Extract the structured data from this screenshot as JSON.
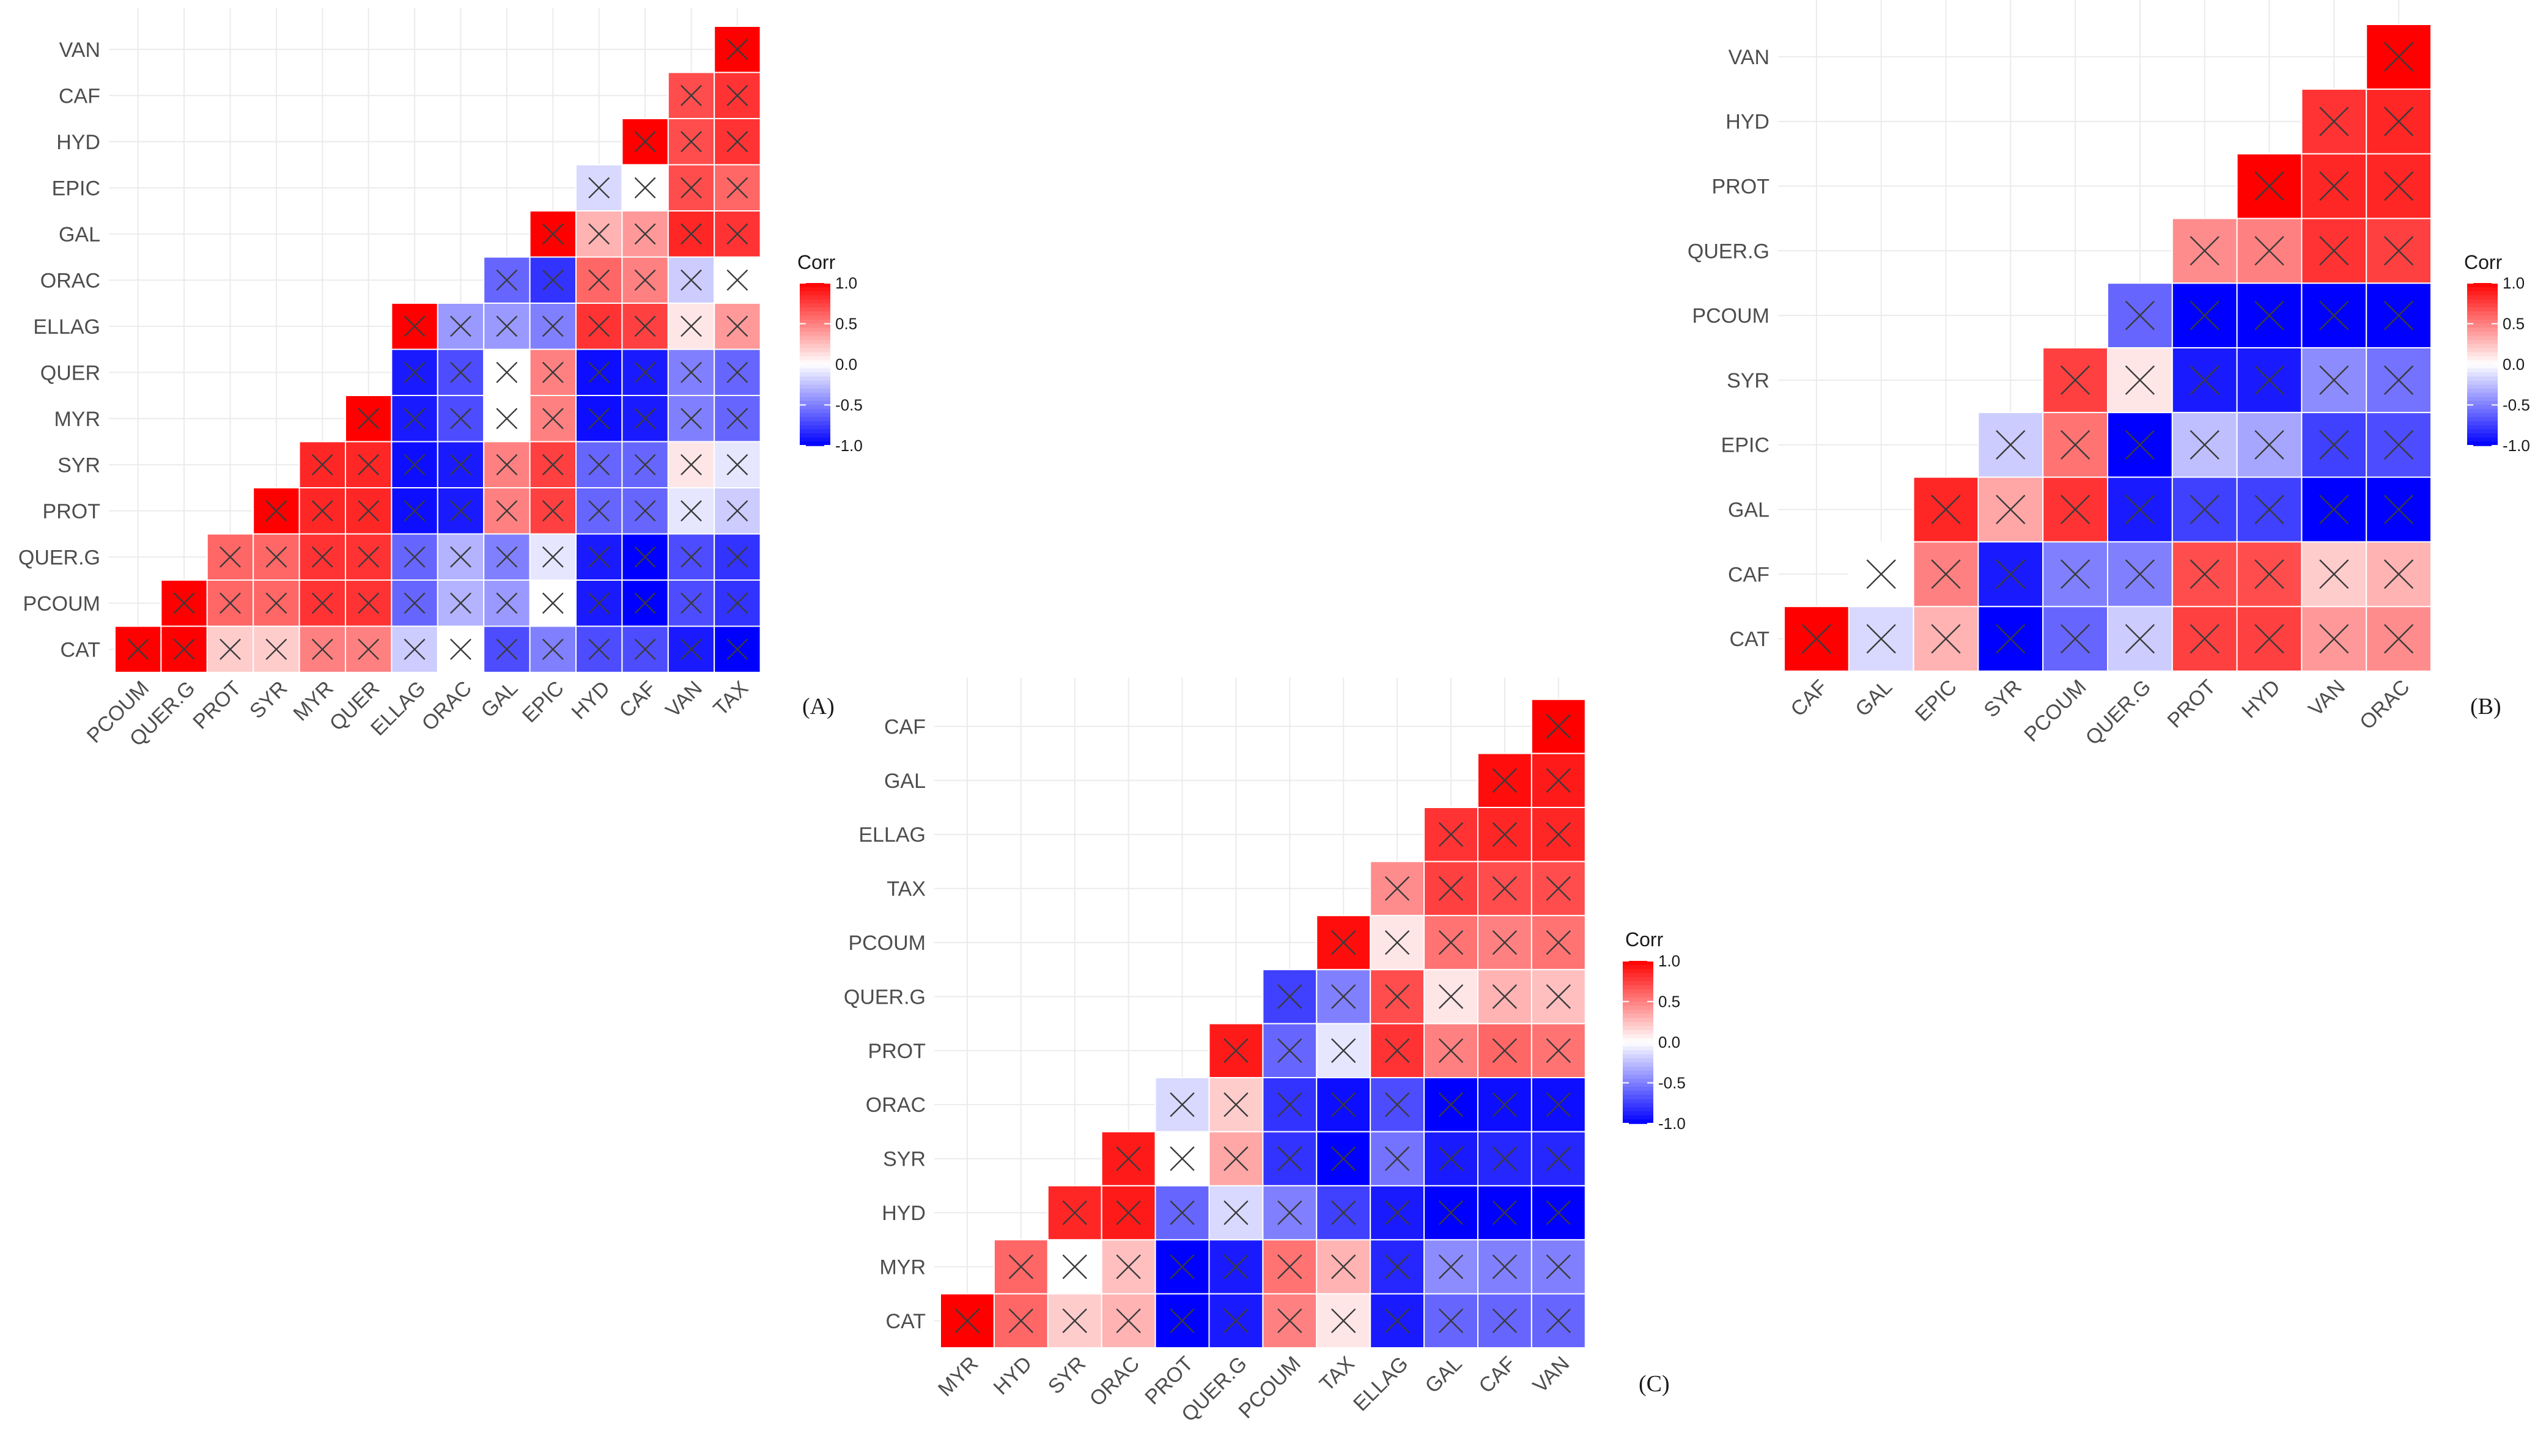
{
  "chart_data": [
    {
      "type": "heatmap",
      "panel_label": "(A)",
      "legend": {
        "title": "Corr",
        "ticks": [
          "1.0",
          "0.5",
          "0.0",
          "-0.5",
          "-1.0"
        ],
        "range": [
          -1,
          1
        ]
      },
      "x_labels": [
        "PCOUM",
        "QUER.G",
        "PROT",
        "SYR",
        "MYR",
        "QUER",
        "ELLAG",
        "ORAC",
        "GAL",
        "EPIC",
        "HYD",
        "CAF",
        "VAN",
        "TAX"
      ],
      "y_labels": [
        "CAT",
        "PCOUM",
        "QUER.G",
        "PROT",
        "SYR",
        "MYR",
        "QUER",
        "ELLAG",
        "ORAC",
        "GAL",
        "EPIC",
        "HYD",
        "CAF",
        "VAN"
      ],
      "values": [
        [
          1.0,
          1.0,
          0.2,
          0.2,
          0.5,
          0.5,
          -0.2,
          0.0,
          -0.7,
          -0.5,
          -0.7,
          -0.7,
          -0.9,
          -1.0
        ],
        [
          null,
          1.0,
          0.6,
          0.6,
          0.8,
          0.8,
          -0.6,
          -0.3,
          -0.4,
          0.0,
          -0.9,
          -1.0,
          -0.7,
          -0.8
        ],
        [
          null,
          null,
          0.6,
          0.6,
          0.8,
          0.8,
          -0.6,
          -0.3,
          -0.5,
          -0.1,
          -0.9,
          -1.0,
          -0.7,
          -0.8
        ],
        [
          null,
          null,
          null,
          1.0,
          0.85,
          0.85,
          -0.95,
          -0.9,
          0.5,
          0.75,
          -0.6,
          -0.6,
          -0.1,
          -0.2
        ],
        [
          null,
          null,
          null,
          null,
          0.85,
          0.85,
          -0.95,
          -0.9,
          0.5,
          0.75,
          -0.6,
          -0.6,
          0.1,
          -0.1
        ],
        [
          null,
          null,
          null,
          null,
          null,
          1.0,
          -0.9,
          -0.7,
          0.0,
          0.5,
          -0.95,
          -0.9,
          -0.5,
          -0.6
        ],
        [
          null,
          null,
          null,
          null,
          null,
          null,
          -0.9,
          -0.7,
          0.0,
          0.5,
          -0.95,
          -0.9,
          -0.5,
          -0.6
        ],
        [
          null,
          null,
          null,
          null,
          null,
          null,
          1.0,
          -0.4,
          -0.4,
          -0.5,
          0.8,
          0.75,
          0.1,
          0.4
        ],
        [
          null,
          null,
          null,
          null,
          null,
          null,
          null,
          null,
          -0.6,
          -0.8,
          0.6,
          0.5,
          -0.2,
          0.0
        ],
        [
          null,
          null,
          null,
          null,
          null,
          null,
          null,
          null,
          null,
          1.0,
          0.3,
          0.4,
          0.85,
          0.8
        ],
        [
          null,
          null,
          null,
          null,
          null,
          null,
          null,
          null,
          null,
          null,
          -0.15,
          0.0,
          0.7,
          0.6
        ],
        [
          null,
          null,
          null,
          null,
          null,
          null,
          null,
          null,
          null,
          null,
          null,
          1.0,
          0.7,
          0.8
        ],
        [
          null,
          null,
          null,
          null,
          null,
          null,
          null,
          null,
          null,
          null,
          null,
          null,
          0.7,
          0.8
        ],
        [
          null,
          null,
          null,
          null,
          null,
          null,
          null,
          null,
          null,
          null,
          null,
          null,
          null,
          1.0
        ]
      ]
    },
    {
      "type": "heatmap",
      "panel_label": "(B)",
      "legend": {
        "title": "Corr",
        "ticks": [
          "1.0",
          "0.5",
          "0.0",
          "-0.5",
          "-1.0"
        ],
        "range": [
          -1,
          1
        ]
      },
      "x_labels": [
        "CAF",
        "GAL",
        "EPIC",
        "SYR",
        "PCOUM",
        "QUER.G",
        "PROT",
        "HYD",
        "VAN",
        "ORAC"
      ],
      "y_labels": [
        "CAT",
        "CAF",
        "GAL",
        "EPIC",
        "SYR",
        "PCOUM",
        "QUER.G",
        "PROT",
        "HYD",
        "VAN"
      ],
      "values": [
        [
          1.0,
          -0.15,
          0.3,
          -1.0,
          -0.6,
          -0.2,
          0.75,
          0.75,
          0.4,
          0.45
        ],
        [
          null,
          0.0,
          0.5,
          -0.9,
          -0.5,
          -0.5,
          0.7,
          0.7,
          0.2,
          0.3
        ],
        [
          null,
          null,
          0.85,
          0.35,
          0.8,
          -0.9,
          -0.75,
          -0.75,
          -1.0,
          -1.0
        ],
        [
          null,
          null,
          null,
          -0.2,
          0.55,
          -1.0,
          -0.25,
          -0.35,
          -0.75,
          -0.7
        ],
        [
          null,
          null,
          null,
          null,
          0.75,
          0.1,
          -0.9,
          -0.9,
          -0.45,
          -0.55
        ],
        [
          null,
          null,
          null,
          null,
          null,
          -0.6,
          -1.0,
          -1.0,
          -1.0,
          -1.0
        ],
        [
          null,
          null,
          null,
          null,
          null,
          null,
          0.45,
          0.5,
          0.8,
          0.75
        ],
        [
          null,
          null,
          null,
          null,
          null,
          null,
          null,
          1.0,
          0.85,
          0.85
        ],
        [
          null,
          null,
          null,
          null,
          null,
          null,
          null,
          null,
          0.8,
          0.85
        ],
        [
          null,
          null,
          null,
          null,
          null,
          null,
          null,
          null,
          null,
          1.0
        ]
      ]
    },
    {
      "type": "heatmap",
      "panel_label": "(C)",
      "legend": {
        "title": "Corr",
        "ticks": [
          "1.0",
          "0.5",
          "0.0",
          "-0.5",
          "-1.0"
        ],
        "range": [
          -1,
          1
        ]
      },
      "x_labels": [
        "MYR",
        "HYD",
        "SYR",
        "ORAC",
        "PROT",
        "QUER.G",
        "PCOUM",
        "TAX",
        "ELLAG",
        "GAL",
        "CAF",
        "VAN"
      ],
      "y_labels": [
        "CAT",
        "MYR",
        "HYD",
        "SYR",
        "ORAC",
        "PROT",
        "QUER.G",
        "PCOUM",
        "TAX",
        "ELLAG",
        "GAL",
        "CAF"
      ],
      "values": [
        [
          1.0,
          0.6,
          0.2,
          0.3,
          -1.0,
          -0.9,
          0.5,
          0.1,
          -0.9,
          -0.6,
          -0.6,
          -0.6
        ],
        [
          null,
          0.6,
          0.0,
          0.25,
          -1.0,
          -0.9,
          0.55,
          0.3,
          -0.85,
          -0.45,
          -0.5,
          -0.5
        ],
        [
          null,
          null,
          0.85,
          0.9,
          -0.6,
          -0.15,
          -0.5,
          -0.75,
          -0.9,
          -1.0,
          -1.0,
          -1.0
        ],
        [
          null,
          null,
          null,
          0.9,
          0.0,
          0.35,
          -0.8,
          -1.0,
          -0.55,
          -0.9,
          -0.85,
          -0.85
        ],
        [
          null,
          null,
          null,
          null,
          -0.15,
          0.2,
          -0.8,
          -0.95,
          -0.7,
          -1.0,
          -0.95,
          -0.95
        ],
        [
          null,
          null,
          null,
          null,
          null,
          0.9,
          -0.6,
          -0.1,
          0.8,
          0.5,
          0.6,
          0.55
        ],
        [
          null,
          null,
          null,
          null,
          null,
          null,
          -0.75,
          -0.5,
          0.7,
          0.1,
          0.3,
          0.25
        ],
        [
          null,
          null,
          null,
          null,
          null,
          null,
          null,
          0.95,
          0.1,
          0.55,
          0.5,
          0.55
        ],
        [
          null,
          null,
          null,
          null,
          null,
          null,
          null,
          null,
          0.45,
          0.75,
          0.7,
          0.7
        ],
        [
          null,
          null,
          null,
          null,
          null,
          null,
          null,
          null,
          null,
          0.8,
          0.85,
          0.85
        ],
        [
          null,
          null,
          null,
          null,
          null,
          null,
          null,
          null,
          null,
          null,
          0.95,
          0.9
        ],
        [
          null,
          null,
          null,
          null,
          null,
          null,
          null,
          null,
          null,
          null,
          null,
          1.0
        ]
      ]
    }
  ]
}
